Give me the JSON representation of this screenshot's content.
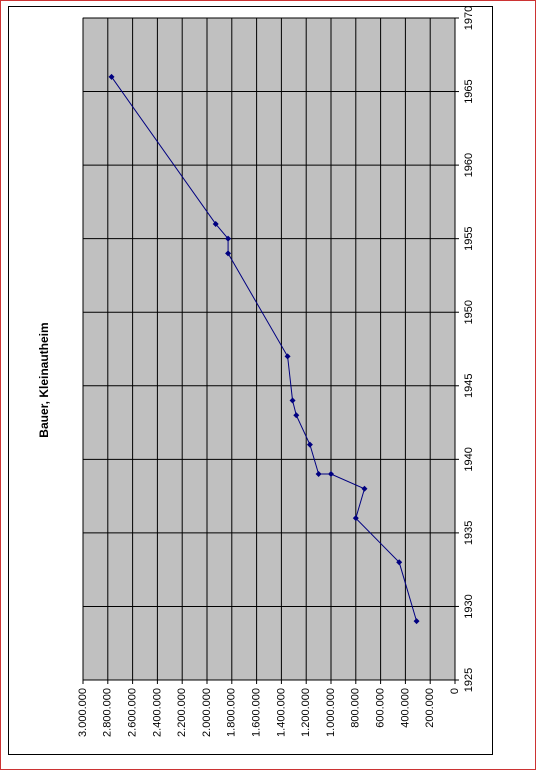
{
  "chart_data": {
    "type": "line",
    "title": "Bauer, Kleinautheim",
    "x": [
      1929,
      1933,
      1936,
      1938,
      1939,
      1939,
      1941,
      1943,
      1944,
      1947,
      1954,
      1955,
      1956,
      1966
    ],
    "values": [
      310000,
      450000,
      800000,
      730000,
      1000000,
      1100000,
      1170000,
      1280000,
      1310000,
      1350000,
      1830000,
      1830000,
      1930000,
      2770000
    ],
    "color": "#000080",
    "xlim": [
      1925,
      1970
    ],
    "xticks": [
      1925,
      1930,
      1935,
      1940,
      1945,
      1950,
      1955,
      1960,
      1965,
      1970
    ],
    "ylim": [
      0,
      3000000
    ],
    "yticks": [
      0,
      {
        "value": 200000,
        "label": "200.000"
      },
      {
        "value": 400000,
        "label": "400.000"
      },
      {
        "value": 600000,
        "label": "600.000"
      },
      {
        "value": 800000,
        "label": "800.000"
      },
      {
        "value": 1000000,
        "label": "1.000.000"
      },
      {
        "value": 1200000,
        "label": "1.200.000"
      },
      {
        "value": 1400000,
        "label": "1.400.000"
      },
      {
        "value": 1600000,
        "label": "1.600.000"
      },
      {
        "value": 1800000,
        "label": "1.800.000"
      },
      {
        "value": 2000000,
        "label": "2.000.000"
      },
      {
        "value": 2200000,
        "label": "2.200.000"
      },
      {
        "value": 2400000,
        "label": "2.400.000"
      },
      {
        "value": 2600000,
        "label": "2.600.000"
      },
      {
        "value": 2800000,
        "label": "2.800.000"
      },
      {
        "value": 3000000,
        "label": "3.000.000"
      }
    ],
    "grid": true
  }
}
